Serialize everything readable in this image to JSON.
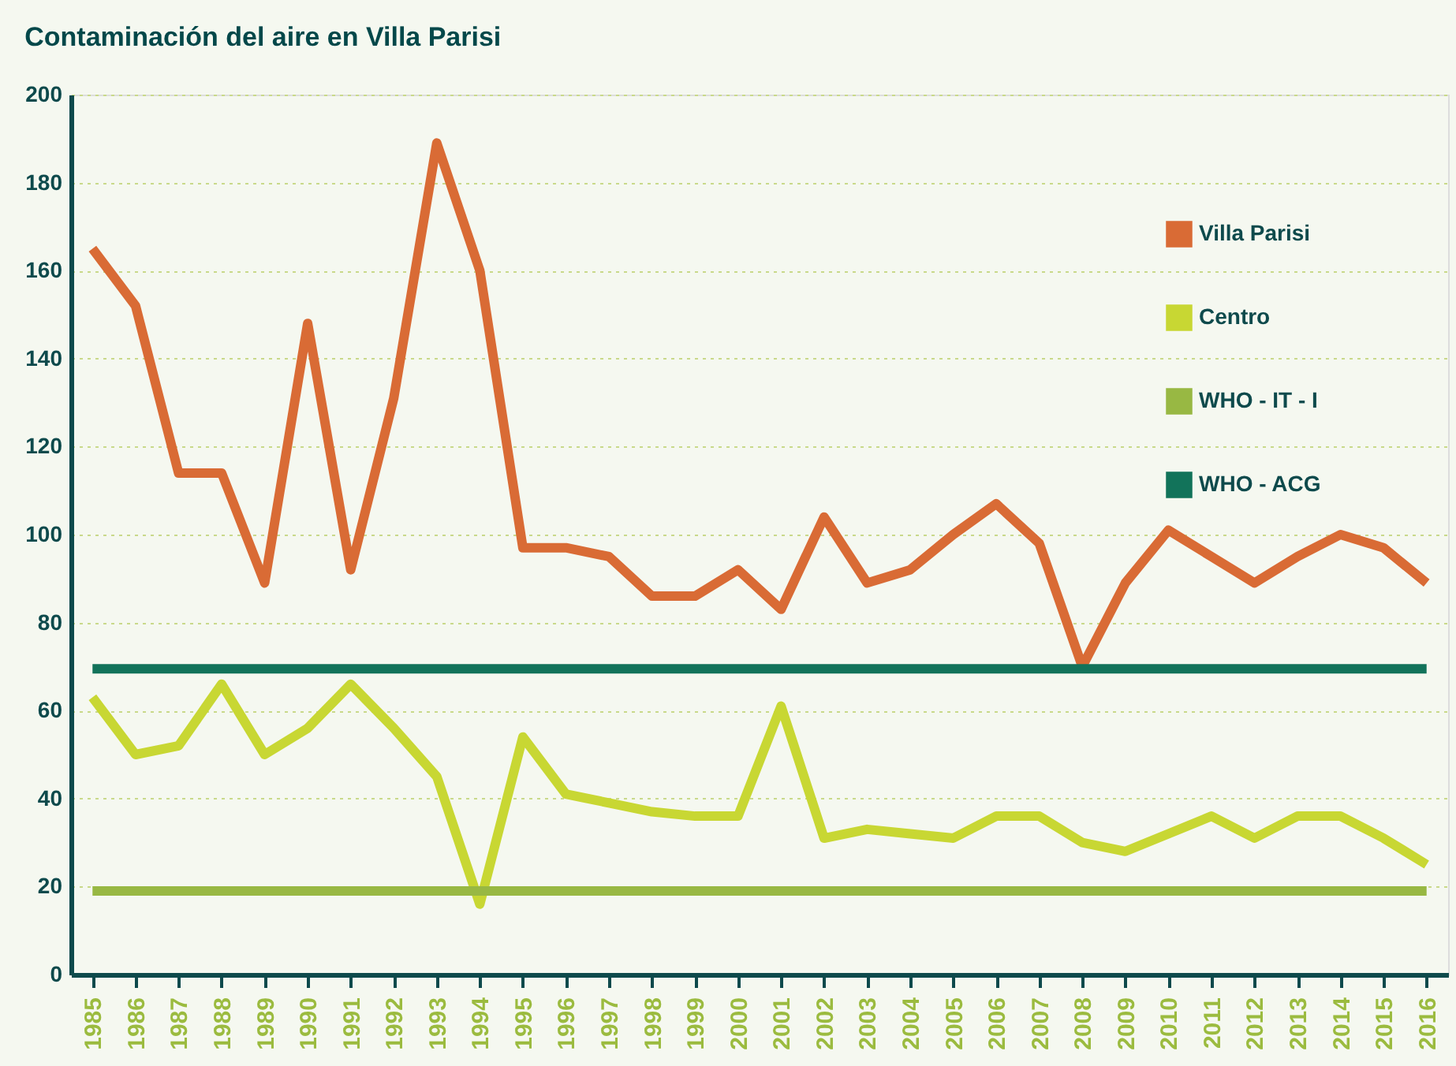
{
  "chart_data": {
    "type": "line",
    "title": "Contaminación del aire en Villa Parisi",
    "categories": [
      "1985",
      "1986",
      "1987",
      "1988",
      "1989",
      "1990",
      "1991",
      "1992",
      "1993",
      "1994",
      "1995",
      "1996",
      "1997",
      "1998",
      "1999",
      "2000",
      "2001",
      "2002",
      "2003",
      "2004",
      "2005",
      "2006",
      "2007",
      "2008",
      "2009",
      "2010",
      "2011",
      "2012",
      "2013",
      "2014",
      "2015",
      "2016"
    ],
    "series": [
      {
        "name": "Villa Parisi",
        "color": "#d96b35",
        "values": [
          165,
          152,
          114,
          114,
          89,
          148,
          92,
          131,
          189,
          160,
          97,
          97,
          95,
          86,
          86,
          92,
          83,
          104,
          89,
          92,
          100,
          107,
          98,
          70,
          89,
          101,
          95,
          89,
          95,
          100,
          97,
          89
        ]
      },
      {
        "name": "Centro",
        "color": "#c8d733",
        "values": [
          63,
          50,
          52,
          66,
          50,
          56,
          66,
          56,
          45,
          16,
          54,
          41,
          39,
          37,
          36,
          36,
          61,
          31,
          33,
          32,
          31,
          36,
          36,
          30,
          28,
          32,
          36,
          31,
          36,
          36,
          31,
          25
        ]
      },
      {
        "name": "WHO - IT - I",
        "color": "#98b843",
        "values": [
          19,
          19,
          19,
          19,
          19,
          19,
          19,
          19,
          19,
          19,
          19,
          19,
          19,
          19,
          19,
          19,
          19,
          19,
          19,
          19,
          19,
          19,
          19,
          19,
          19,
          19,
          19,
          19,
          19,
          19,
          19,
          19
        ]
      },
      {
        "name": "WHO - ACG",
        "color": "#12735a",
        "values": [
          69.5,
          69.5,
          69.5,
          69.5,
          69.5,
          69.5,
          69.5,
          69.5,
          69.5,
          69.5,
          69.5,
          69.5,
          69.5,
          69.5,
          69.5,
          69.5,
          69.5,
          69.5,
          69.5,
          69.5,
          69.5,
          69.5,
          69.5,
          69.5,
          69.5,
          69.5,
          69.5,
          69.5,
          69.5,
          69.5,
          69.5,
          69.5
        ]
      }
    ],
    "ylim": [
      0,
      200
    ],
    "yticks": [
      0,
      20,
      40,
      60,
      80,
      100,
      120,
      140,
      160,
      180,
      200
    ],
    "grid": "y",
    "legend": "top right"
  }
}
